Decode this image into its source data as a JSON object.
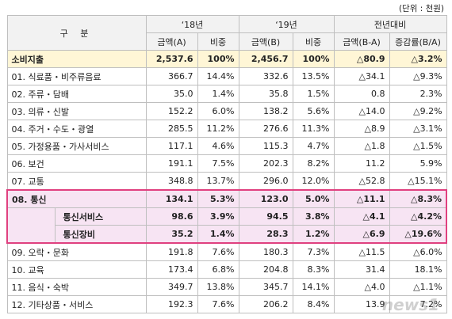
{
  "unit": "(단위 : 천원)",
  "header": {
    "top": [
      "구 분",
      "‘18년",
      "‘19년",
      "전년대비"
    ],
    "sub": [
      "금액(A)",
      "비중",
      "금액(B)",
      "비중",
      "금액(B-A)",
      "증감률(B/A)"
    ]
  },
  "rows": [
    {
      "label": "소비지출",
      "cells": [
        "2,537.6",
        "100%",
        "2,456.7",
        "100%",
        "△80.9",
        "△3.2%"
      ]
    },
    {
      "label": "01. 식료품・비주류음료",
      "cells": [
        "366.7",
        "14.4%",
        "332.6",
        "13.5%",
        "△34.1",
        "△9.3%"
      ]
    },
    {
      "label": "02. 주류・담배",
      "cells": [
        "35.0",
        "1.4%",
        "35.8",
        "1.5%",
        "0.8",
        "2.3%"
      ]
    },
    {
      "label": "03. 의류・신발",
      "cells": [
        "152.2",
        "6.0%",
        "138.2",
        "5.6%",
        "△14.0",
        "△9.2%"
      ]
    },
    {
      "label": "04. 주거・수도・광열",
      "cells": [
        "285.5",
        "11.2%",
        "276.6",
        "11.3%",
        "△8.9",
        "△3.1%"
      ]
    },
    {
      "label": "05. 가정용품・가사서비스",
      "cells": [
        "117.1",
        "4.6%",
        "115.3",
        "4.7%",
        "△1.8",
        "△1.5%"
      ]
    },
    {
      "label": "06. 보건",
      "cells": [
        "191.1",
        "7.5%",
        "202.3",
        "8.2%",
        "11.2",
        "5.9%"
      ]
    },
    {
      "label": "07. 교통",
      "cells": [
        "348.8",
        "13.7%",
        "296.0",
        "12.0%",
        "△52.8",
        "△15.1%"
      ]
    },
    {
      "label": "08. 통신",
      "cells": [
        "134.1",
        "5.3%",
        "123.0",
        "5.0%",
        "△11.1",
        "△8.3%"
      ],
      "subrows": [
        {
          "label": "통신서비스",
          "cells": [
            "98.6",
            "3.9%",
            "94.5",
            "3.8%",
            "△4.1",
            "△4.2%"
          ]
        },
        {
          "label": "통신장비",
          "cells": [
            "35.2",
            "1.4%",
            "28.3",
            "1.2%",
            "△6.9",
            "△19.6%"
          ]
        }
      ]
    },
    {
      "label": "09. 오락・문화",
      "cells": [
        "191.8",
        "7.6%",
        "180.3",
        "7.3%",
        "△11.5",
        "△6.0%"
      ]
    },
    {
      "label": "10. 교육",
      "cells": [
        "173.4",
        "6.8%",
        "204.8",
        "8.3%",
        "31.4",
        "18.1%"
      ]
    },
    {
      "label": "11. 음식・숙박",
      "cells": [
        "349.7",
        "13.8%",
        "345.7",
        "14.1%",
        "△4.0",
        "△1.1%"
      ]
    },
    {
      "label": "12. 기타상품・서비스",
      "cells": [
        "192.3",
        "7.6%",
        "206.2",
        "8.4%",
        "13.9",
        "7.2%"
      ]
    }
  ],
  "watermark": "news1"
}
